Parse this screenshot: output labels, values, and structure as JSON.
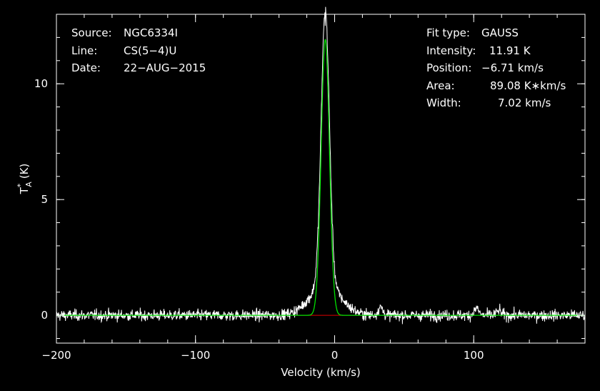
{
  "chart_data": {
    "type": "line",
    "xlabel": "Velocity (km/s)",
    "ylabel_main": "T",
    "ylabel_sup": "*",
    "ylabel_sub": "A",
    "ylabel_unit": "(K)",
    "xlim": [
      -200,
      180
    ],
    "ylim": [
      -1.2,
      13.0
    ],
    "x_ticks": [
      -200,
      -100,
      0,
      100
    ],
    "x_tick_labels": [
      "−200",
      "−100",
      "0",
      "100"
    ],
    "y_ticks": [
      0,
      5,
      10
    ],
    "y_tick_labels": [
      "0",
      "5",
      "10"
    ],
    "x_minor_step": 20,
    "y_minor_step": 1,
    "colors": {
      "spectrum": "#ffffff",
      "fit": "#00e000",
      "baseline": "#e00000",
      "frame": "#ffffff"
    },
    "fit": {
      "type": "gaussian",
      "amplitude": 11.91,
      "center": -6.71,
      "fwhm": 7.02
    },
    "baseline": {
      "y": 0,
      "x_range": [
        -30,
        20
      ]
    },
    "spectrum": {
      "noise_rms": 0.12,
      "channel_width": 0.25,
      "peak_value": 12.5,
      "features": [
        {
          "center": -6.71,
          "amplitude": 11.91,
          "fwhm": 7.02
        },
        {
          "center": -6.7,
          "amplitude": 1.3,
          "fwhm": 26
        },
        {
          "center": 33,
          "amplitude": 0.35,
          "fwhm": 4
        },
        {
          "center": 102,
          "amplitude": 0.3,
          "fwhm": 4
        },
        {
          "center": 118,
          "amplitude": 0.2,
          "fwhm": 4
        }
      ]
    }
  },
  "header_left": [
    {
      "key": "Source:",
      "value": "NGC6334I"
    },
    {
      "key": "Line:",
      "value": "CS(5−4)U"
    },
    {
      "key": "Date:",
      "value": "22−AUG−2015"
    }
  ],
  "header_right": [
    {
      "key": "Fit type:",
      "value": "GAUSS"
    },
    {
      "key": "Intensity:",
      "value": "11.91 K"
    },
    {
      "key": "Position:",
      "value": "−6.71 km/s"
    },
    {
      "key": "Area:",
      "value": "89.08 K∗km/s"
    },
    {
      "key": "Width:",
      "value": "7.02 km/s"
    }
  ]
}
